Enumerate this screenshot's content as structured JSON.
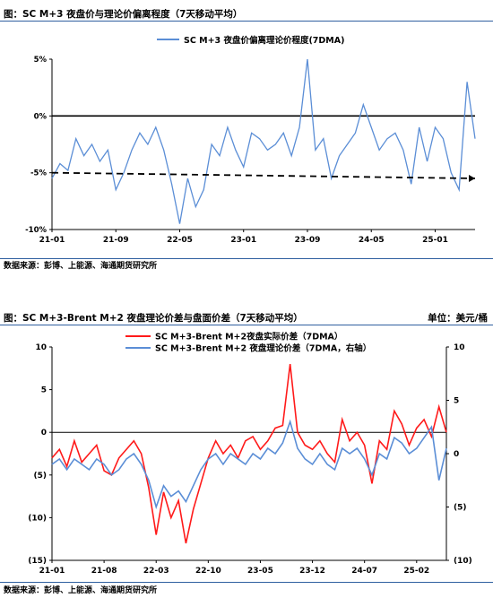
{
  "chart_data": [
    {
      "type": "line",
      "title": "图：SC M+3 夜盘价与理论价偏离程度（7天移动平均）",
      "source": "数据来源：彭博、上能源、海通期货研究所",
      "x_tick_labels": [
        "21-01",
        "21-09",
        "22-05",
        "23-01",
        "23-09",
        "24-05",
        "25-01"
      ],
      "y_tick_labels": [
        "5%",
        "0%",
        "-5%",
        "-10%"
      ],
      "ylim": [
        -10,
        5
      ],
      "grid": false,
      "legend_position": "top-center",
      "series": [
        {
          "name": "SC M+3 夜盘价偏离理论价程度(7DMA)",
          "color": "#5b8ed6",
          "unit": "%",
          "x": [
            "2021-01",
            "2021-02",
            "2021-03",
            "2021-04",
            "2021-05",
            "2021-06",
            "2021-07",
            "2021-08",
            "2021-09",
            "2021-10",
            "2021-11",
            "2021-12",
            "2022-01",
            "2022-02",
            "2022-03",
            "2022-04",
            "2022-05",
            "2022-06",
            "2022-07",
            "2022-08",
            "2022-09",
            "2022-10",
            "2022-11",
            "2022-12",
            "2023-01",
            "2023-02",
            "2023-03",
            "2023-04",
            "2023-05",
            "2023-06",
            "2023-07",
            "2023-08",
            "2023-09",
            "2023-10",
            "2023-11",
            "2023-12",
            "2024-01",
            "2024-02",
            "2024-03",
            "2024-04",
            "2024-05",
            "2024-06",
            "2024-07",
            "2024-08",
            "2024-09",
            "2024-10",
            "2024-11",
            "2024-12",
            "2025-01",
            "2025-02",
            "2025-03",
            "2025-04",
            "2025-05",
            "2025-06"
          ],
          "values": [
            -5.5,
            -4.2,
            -4.8,
            -2.0,
            -3.5,
            -2.5,
            -4.0,
            -3.0,
            -6.5,
            -5.0,
            -3.0,
            -1.5,
            -2.5,
            -1.0,
            -3.0,
            -6.0,
            -9.5,
            -5.5,
            -8.0,
            -6.5,
            -2.5,
            -3.5,
            -1.0,
            -3.0,
            -4.5,
            -1.5,
            -2.0,
            -3.0,
            -2.5,
            -1.5,
            -3.5,
            -1.0,
            5.0,
            -3.0,
            -2.0,
            -5.5,
            -3.5,
            -2.5,
            -1.5,
            1.0,
            -1.0,
            -3.0,
            -2.0,
            -1.5,
            -3.0,
            -6.0,
            -1.0,
            -4.0,
            -1.0,
            -2.0,
            -5.0,
            -6.5,
            3.0,
            -2.0
          ]
        },
        {
          "name": "dashed trend",
          "style": "dashed",
          "color": "#000000",
          "x": [
            "2021-01",
            "2025-06"
          ],
          "values": [
            -5.0,
            -5.5
          ]
        }
      ],
      "reference_line": 0
    },
    {
      "type": "line",
      "title": "图：SC M+3-Brent M+2 夜盘理论价差与盘面价差（7天移动平均）",
      "unit_label": "单位：美元/桶",
      "source": "数据来源：彭博、上能源、海通期货研究所",
      "x_tick_labels": [
        "21-01",
        "21-08",
        "22-03",
        "22-10",
        "23-05",
        "23-12",
        "24-07",
        "25-02"
      ],
      "y_left_tick_labels": [
        "10",
        "5",
        "0",
        "(5)",
        "(10)",
        "(15)"
      ],
      "y_right_tick_labels": [
        "10",
        "5",
        "0",
        "(5)",
        "(10)"
      ],
      "ylim_left": [
        -15,
        10
      ],
      "ylim_right": [
        -10,
        10
      ],
      "grid": false,
      "legend_position": "top-center",
      "series": [
        {
          "name": "SC M+3-Brent M+2夜盘实际价差（7DMA）",
          "axis": "left",
          "color": "#ff1a1a",
          "x": [
            "2021-01",
            "2021-02",
            "2021-03",
            "2021-04",
            "2021-05",
            "2021-06",
            "2021-07",
            "2021-08",
            "2021-09",
            "2021-10",
            "2021-11",
            "2021-12",
            "2022-01",
            "2022-02",
            "2022-03",
            "2022-04",
            "2022-05",
            "2022-06",
            "2022-07",
            "2022-08",
            "2022-09",
            "2022-10",
            "2022-11",
            "2022-12",
            "2023-01",
            "2023-02",
            "2023-03",
            "2023-04",
            "2023-05",
            "2023-06",
            "2023-07",
            "2023-08",
            "2023-09",
            "2023-10",
            "2023-11",
            "2023-12",
            "2024-01",
            "2024-02",
            "2024-03",
            "2024-04",
            "2024-05",
            "2024-06",
            "2024-07",
            "2024-08",
            "2024-09",
            "2024-10",
            "2024-11",
            "2024-12",
            "2025-01",
            "2025-02",
            "2025-03",
            "2025-04",
            "2025-05",
            "2025-06"
          ],
          "values": [
            -3.0,
            -2.0,
            -4.0,
            -1.0,
            -3.5,
            -2.5,
            -1.5,
            -4.5,
            -5.0,
            -3.0,
            -2.0,
            -1.0,
            -2.5,
            -6.5,
            -12.0,
            -7.0,
            -10.0,
            -8.0,
            -13.0,
            -9.0,
            -6.0,
            -3.0,
            -1.0,
            -2.5,
            -1.5,
            -3.0,
            -1.0,
            -0.5,
            -2.0,
            -1.0,
            0.5,
            0.8,
            8.0,
            0.0,
            -1.5,
            -2.0,
            -1.0,
            -2.5,
            -3.5,
            1.5,
            -1.0,
            0.0,
            -1.5,
            -6.0,
            -1.0,
            -2.0,
            2.5,
            1.0,
            -1.5,
            0.5,
            1.5,
            -0.5,
            3.0,
            0.0
          ]
        },
        {
          "name": "SC M+3-Brent M+2 夜盘理论价差（7DMA，右轴）",
          "axis": "right",
          "color": "#5b8ed6",
          "x": [
            "2021-01",
            "2021-02",
            "2021-03",
            "2021-04",
            "2021-05",
            "2021-06",
            "2021-07",
            "2021-08",
            "2021-09",
            "2021-10",
            "2021-11",
            "2021-12",
            "2022-01",
            "2022-02",
            "2022-03",
            "2022-04",
            "2022-05",
            "2022-06",
            "2022-07",
            "2022-08",
            "2022-09",
            "2022-10",
            "2022-11",
            "2022-12",
            "2023-01",
            "2023-02",
            "2023-03",
            "2023-04",
            "2023-05",
            "2023-06",
            "2023-07",
            "2023-08",
            "2023-09",
            "2023-10",
            "2023-11",
            "2023-12",
            "2024-01",
            "2024-02",
            "2024-03",
            "2024-04",
            "2024-05",
            "2024-06",
            "2024-07",
            "2024-08",
            "2024-09",
            "2024-10",
            "2024-11",
            "2024-12",
            "2025-01",
            "2025-02",
            "2025-03",
            "2025-04",
            "2025-05",
            "2025-06"
          ],
          "values": [
            -1.0,
            -0.5,
            -1.5,
            -0.5,
            -1.0,
            -1.5,
            -0.5,
            -1.0,
            -2.0,
            -1.5,
            -0.5,
            0.0,
            -1.0,
            -2.5,
            -5.0,
            -3.0,
            -4.0,
            -3.5,
            -4.5,
            -3.0,
            -1.5,
            -0.5,
            0.0,
            -1.0,
            0.0,
            -0.5,
            -1.0,
            0.0,
            -0.5,
            0.5,
            0.0,
            1.0,
            3.0,
            0.5,
            -0.5,
            -1.0,
            0.0,
            -1.0,
            -1.5,
            0.5,
            0.0,
            0.5,
            -0.5,
            -2.0,
            0.0,
            -0.5,
            1.5,
            1.0,
            0.0,
            0.5,
            1.5,
            2.5,
            -2.5,
            0.5
          ]
        }
      ]
    }
  ]
}
